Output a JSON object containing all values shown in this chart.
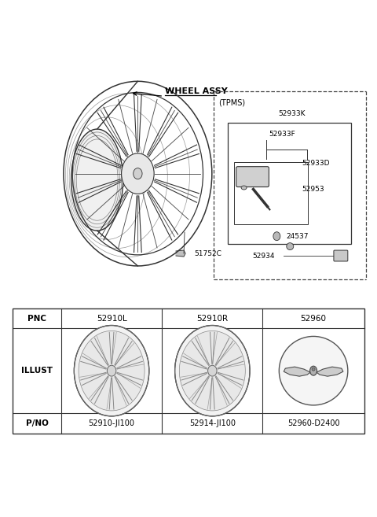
{
  "bg_color": "#ffffff",
  "line_color": "#333333",
  "text_color": "#000000",
  "gray_mid": "#aaaaaa",
  "gray_light": "#cccccc",
  "gray_dark": "#666666",
  "diagram_label": "WHEEL ASSY",
  "part_51752C": "51752C",
  "tpms_label": "(TPMS)",
  "tpms_52933K": "52933K",
  "tpms_52933F": "52933F",
  "tpms_52933D": "52933D",
  "tpms_52953": "52953",
  "tpms_24537": "24537",
  "tpms_52934": "52934",
  "table_col0": "PNC",
  "table_col1": "52910L",
  "table_col2": "52910R",
  "table_col3": "52960",
  "table_row1": "ILLUST",
  "table_row2": "P/NO",
  "table_pno1": "52910-JI100",
  "table_pno2": "52914-JI100",
  "table_pno3": "52960-D2400"
}
